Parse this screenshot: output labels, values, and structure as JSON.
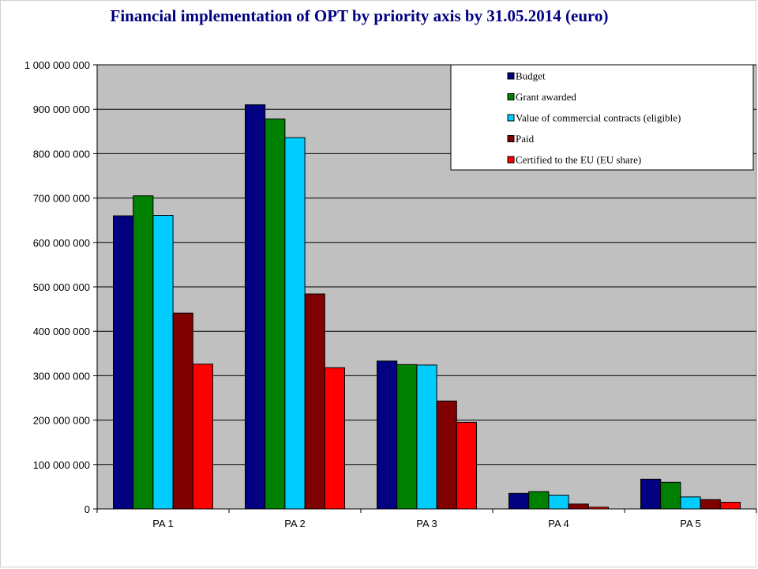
{
  "title": "Financial implementation of OPT by priority axis by 31.05.2014  (euro)",
  "chart_data": {
    "type": "bar",
    "title": "Financial implementation of OPT by priority axis by 31.05.2014  (euro)",
    "categories": [
      "PA 1",
      "PA 2",
      "PA 3",
      "PA 4",
      "PA 5"
    ],
    "ylim": [
      0,
      1000000000
    ],
    "yticks": [
      0,
      100000000,
      200000000,
      300000000,
      400000000,
      500000000,
      600000000,
      700000000,
      800000000,
      900000000,
      1000000000
    ],
    "ytick_labels": [
      "0",
      "100 000 000",
      "200 000 000",
      "300 000 000",
      "400 000 000",
      "500 000 000",
      "600 000 000",
      "700 000 000",
      "800 000 000",
      "900 000 000",
      "1 000 000 000"
    ],
    "grid": true,
    "legend_position": "top-right",
    "plot_background": "#c0c0c0",
    "series": [
      {
        "name": "Budget",
        "color": "#000080",
        "values": [
          660000000,
          910000000,
          333000000,
          35000000,
          67000000
        ]
      },
      {
        "name": "Grant awarded",
        "color": "#008000",
        "values": [
          705000000,
          878000000,
          325000000,
          39000000,
          60000000
        ]
      },
      {
        "name": "Value of commercial contracts (eligible)",
        "color": "#00ccff",
        "values": [
          661000000,
          836000000,
          324000000,
          31000000,
          27000000
        ]
      },
      {
        "name": "Paid",
        "color": "#800000",
        "values": [
          441000000,
          484000000,
          243000000,
          11000000,
          21000000
        ]
      },
      {
        "name": "Certified to the EU (EU share)",
        "color": "#ff0000",
        "values": [
          326000000,
          318000000,
          195000000,
          4000000,
          15000000
        ]
      }
    ]
  }
}
